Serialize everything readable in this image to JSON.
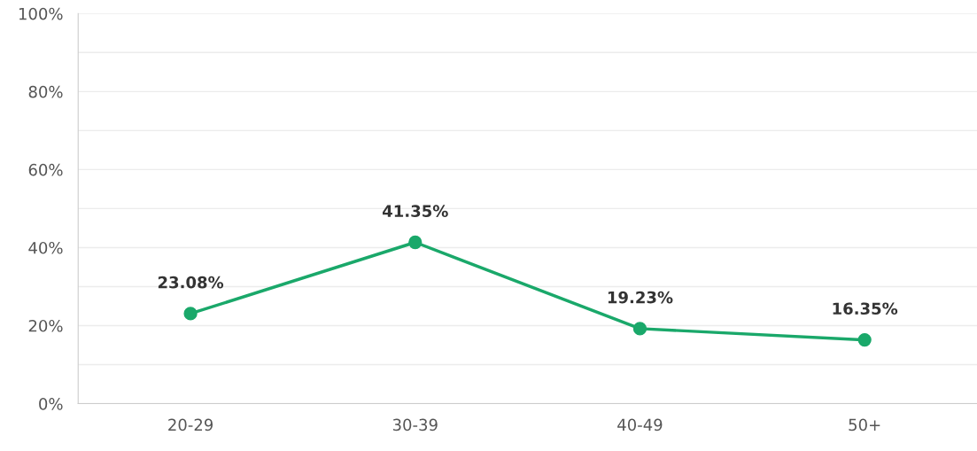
{
  "chart_data": {
    "type": "line",
    "categories": [
      "20-29",
      "30-39",
      "40-49",
      "50+"
    ],
    "series": [
      {
        "color": "#1aa86a",
        "values": [
          23.08,
          41.35,
          19.23,
          16.35
        ],
        "value_labels": [
          "23.08%",
          "41.35%",
          "19.23%",
          "16.35%"
        ]
      }
    ],
    "ylim": [
      0,
      100
    ],
    "yticks": [
      {
        "value": 0,
        "label": "0%"
      },
      {
        "value": 10,
        "label": null
      },
      {
        "value": 20,
        "label": "20%"
      },
      {
        "value": 30,
        "label": null
      },
      {
        "value": 40,
        "label": "40%"
      },
      {
        "value": 50,
        "label": null
      },
      {
        "value": 60,
        "label": "60%"
      },
      {
        "value": 70,
        "label": null
      },
      {
        "value": 80,
        "label": "80%"
      },
      {
        "value": 90,
        "label": null
      },
      {
        "value": 100,
        "label": "100%"
      }
    ],
    "grid": "y",
    "marker": "circle",
    "line_style": "solid"
  }
}
